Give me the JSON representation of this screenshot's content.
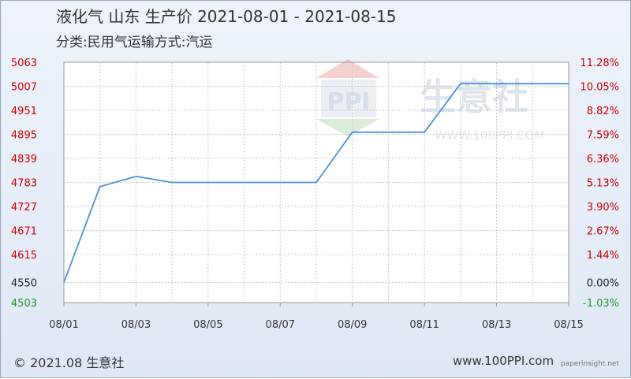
{
  "header": {
    "title": "液化气 山东 生产价 2021-08-01 - 2021-08-15",
    "subtitle": "分类:民用气运输方式:汽运"
  },
  "watermark": {
    "logo_text": "PPI",
    "brand": "生意社",
    "url": "WWW.100PPI.COM"
  },
  "footer": {
    "copyright": "© 2021.08 生意社",
    "site": "www.100PPI.com",
    "badge": "paperinsight.net"
  },
  "colors": {
    "line": "#4a90d9",
    "left_axis": "#cc0000",
    "right_axis": "#cc0000",
    "min_label": "#229922",
    "grid": "#c8c8c8"
  },
  "chart_data": {
    "type": "line",
    "title": "液化气 山东 生产价 2021-08-01 - 2021-08-15",
    "subtitle": "分类:民用气运输方式:汽运",
    "x": [
      "08/01",
      "08/02",
      "08/03",
      "08/04",
      "08/05",
      "08/06",
      "08/07",
      "08/08",
      "08/09",
      "08/10",
      "08/11",
      "08/12",
      "08/13",
      "08/14",
      "08/15"
    ],
    "series": [
      {
        "values": [
          4550,
          4773,
          4797,
          4783,
          4783,
          4783,
          4783,
          4783,
          4900,
          4900,
          4900,
          5013,
          5013,
          5013,
          5013
        ]
      }
    ],
    "x_tick_labels": [
      "08/01",
      "08/03",
      "08/05",
      "08/07",
      "08/09",
      "08/11",
      "08/13",
      "08/15"
    ],
    "y_left_ticks": [
      5063,
      5007,
      4951,
      4895,
      4839,
      4783,
      4727,
      4671,
      4615,
      4550,
      4503
    ],
    "y_right_ticks": [
      "11.28%",
      "10.05%",
      "8.82%",
      "7.59%",
      "6.36%",
      "5.13%",
      "3.90%",
      "2.67%",
      "1.44%",
      "0.00%",
      "-1.03%"
    ],
    "ylim": [
      4503,
      5063
    ],
    "grid": true
  }
}
